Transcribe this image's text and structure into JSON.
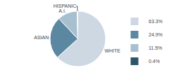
{
  "chart_data": {
    "type": "pie",
    "categories": [
      "WHITE",
      "ASIAN",
      "A.I.",
      "HISPANIC"
    ],
    "values": [
      63.3,
      24.9,
      11.5,
      0.4
    ],
    "value_labels": [
      "63.3%",
      "24.9%",
      "11.5%",
      "0.4%"
    ],
    "colors": [
      "#cdd8e3",
      "#5b87a0",
      "#a8bfcf",
      "#2d5568"
    ],
    "legend": "right"
  }
}
